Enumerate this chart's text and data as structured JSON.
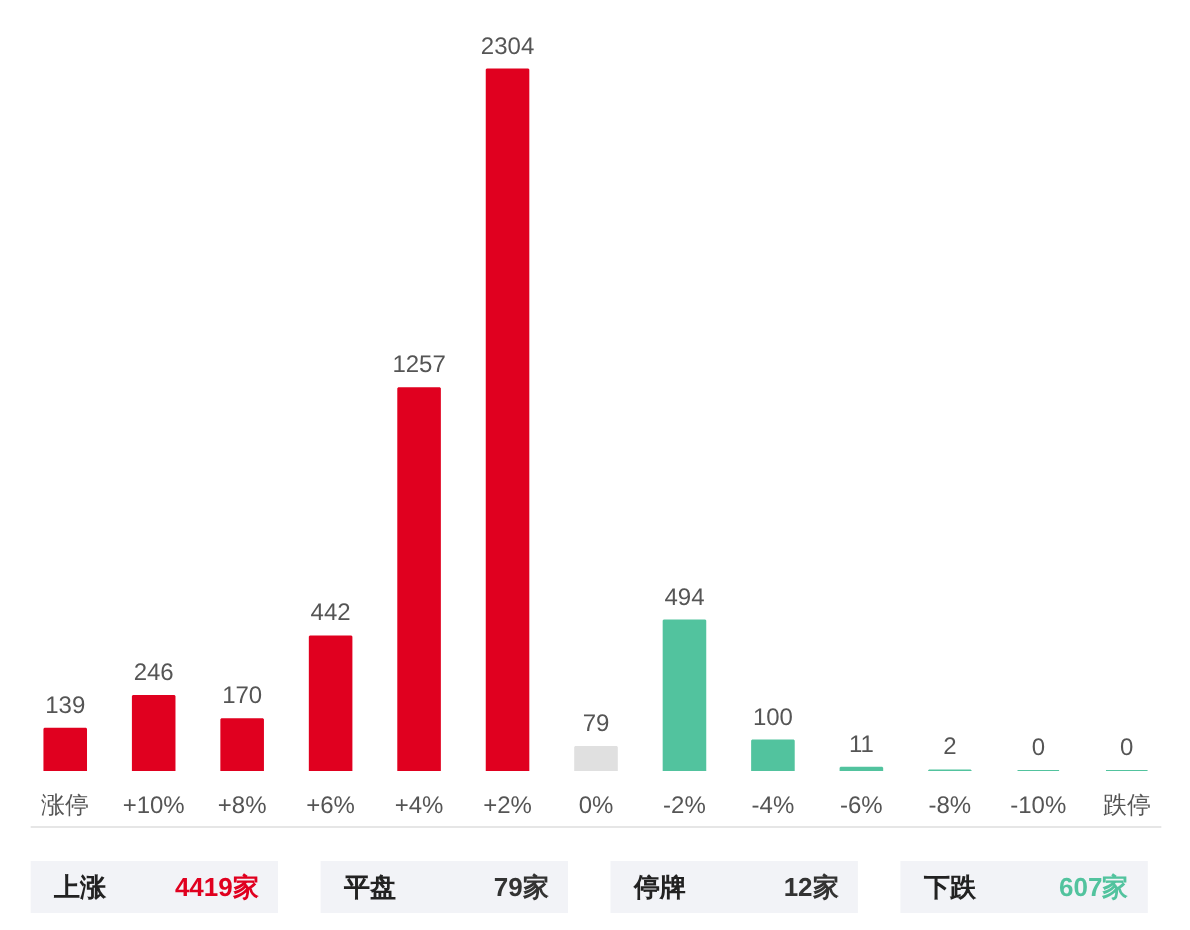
{
  "chart_data": {
    "type": "bar",
    "categories": [
      "涨停",
      "+10%",
      "+8%",
      "+6%",
      "+4%",
      "+2%",
      "0%",
      "-2%",
      "-4%",
      "-6%",
      "-8%",
      "-10%",
      "跌停"
    ],
    "values": [
      139,
      246,
      170,
      442,
      1257,
      2304,
      79,
      494,
      100,
      11,
      2,
      0,
      0
    ],
    "colors": [
      "#e0001f",
      "#e0001f",
      "#e0001f",
      "#e0001f",
      "#e0001f",
      "#e0001f",
      "#e0e0e0",
      "#52c39e",
      "#52c39e",
      "#52c39e",
      "#52c39e",
      "#52c39e",
      "#52c39e"
    ],
    "data_labels": true,
    "grid": false,
    "annotations": [
      "上涨",
      "4419家",
      "平盘",
      "79家",
      "停牌",
      "12家",
      "下跌",
      "607家"
    ]
  }
}
